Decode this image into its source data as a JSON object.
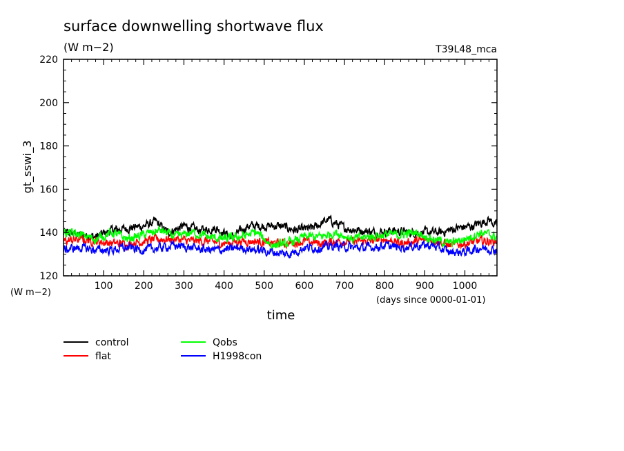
{
  "chart_data": {
    "type": "line",
    "title": "surface downwelling shortwave flux",
    "subtitle": "(W m−2)",
    "run_label": "T39L48_mca",
    "ylabel": "gt_sswi_3",
    "y_unit": "(W m−2)",
    "xlabel": "time",
    "x_unit": "(days since 0000-01-01)",
    "xlim": [
      0,
      1080
    ],
    "ylim": [
      120,
      220
    ],
    "x_ticks": [
      100,
      200,
      300,
      400,
      500,
      600,
      700,
      800,
      900,
      1000
    ],
    "y_ticks": [
      120,
      140,
      160,
      180,
      200,
      220
    ],
    "legend_position": "bottom-left",
    "series": [
      {
        "name": "control",
        "color": "#000000",
        "x": [
          0,
          40,
          80,
          120,
          160,
          200,
          230,
          260,
          300,
          340,
          380,
          420,
          460,
          500,
          540,
          580,
          620,
          660,
          700,
          740,
          780,
          820,
          860,
          900,
          940,
          980,
          1020,
          1060,
          1080
        ],
        "values": [
          140,
          139,
          138,
          141,
          142,
          143,
          145,
          140,
          143,
          141,
          142,
          138,
          143,
          143,
          143,
          141,
          142,
          146,
          142,
          141,
          140,
          141,
          140,
          140,
          140,
          142,
          143,
          146,
          143
        ]
      },
      {
        "name": "flat",
        "color": "#ff0000",
        "x": [
          0,
          40,
          80,
          120,
          160,
          200,
          240,
          280,
          320,
          360,
          400,
          440,
          480,
          520,
          560,
          600,
          640,
          680,
          720,
          760,
          800,
          840,
          880,
          920,
          960,
          1000,
          1040,
          1080
        ],
        "values": [
          136,
          137,
          136,
          135,
          135,
          136,
          137,
          137,
          136,
          136,
          135,
          136,
          136,
          135,
          135,
          136,
          135,
          136,
          136,
          136,
          137,
          135,
          136,
          137,
          134,
          135,
          136,
          136
        ]
      },
      {
        "name": "Qobs",
        "color": "#00ff00",
        "x": [
          0,
          40,
          80,
          120,
          160,
          200,
          240,
          280,
          320,
          360,
          400,
          440,
          480,
          520,
          560,
          600,
          640,
          680,
          720,
          760,
          800,
          840,
          880,
          920,
          960,
          1000,
          1040,
          1080
        ],
        "values": [
          140,
          139,
          137,
          140,
          137,
          139,
          141,
          138,
          140,
          138,
          137,
          138,
          140,
          134,
          135,
          138,
          138,
          140,
          137,
          138,
          139,
          139,
          140,
          137,
          135,
          137,
          140,
          138
        ]
      },
      {
        "name": "H1998con",
        "color": "#0000ff",
        "x": [
          0,
          40,
          80,
          120,
          160,
          200,
          240,
          280,
          320,
          360,
          400,
          440,
          480,
          520,
          560,
          600,
          640,
          680,
          720,
          760,
          800,
          840,
          880,
          920,
          960,
          1000,
          1040,
          1080
        ],
        "values": [
          132,
          133,
          132,
          132,
          133,
          132,
          133,
          134,
          133,
          132,
          132,
          133,
          132,
          131,
          130,
          133,
          133,
          134,
          133,
          133,
          134,
          133,
          134,
          134,
          131,
          131,
          133,
          132
        ]
      }
    ]
  }
}
